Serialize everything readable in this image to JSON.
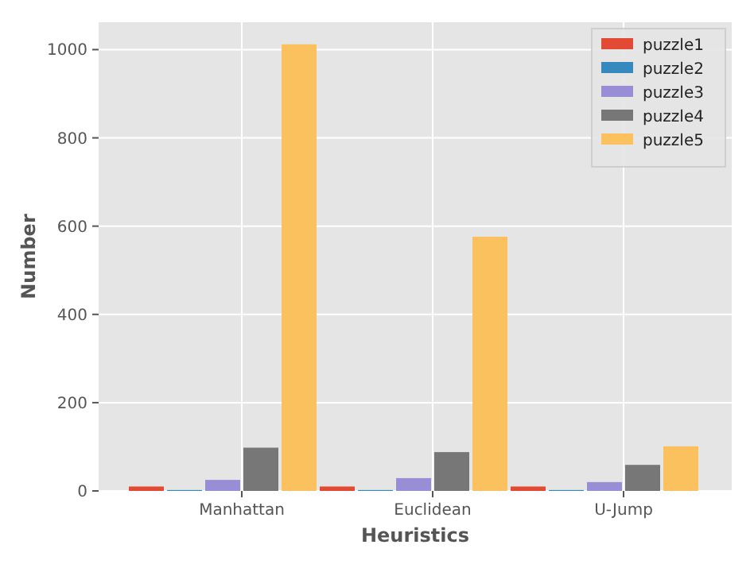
{
  "chart_data": {
    "type": "bar",
    "xlabel": "Heuristics",
    "ylabel": "Number",
    "categories": [
      "Manhattan",
      "Euclidean",
      "U-Jump"
    ],
    "series": [
      {
        "name": "puzzle1",
        "color": "#e24a33",
        "values": [
          10,
          10,
          10
        ]
      },
      {
        "name": "puzzle2",
        "color": "#348abd",
        "values": [
          2,
          2,
          2
        ]
      },
      {
        "name": "puzzle3",
        "color": "#988ed5",
        "values": [
          25,
          29,
          20
        ]
      },
      {
        "name": "puzzle4",
        "color": "#777777",
        "values": [
          98,
          88,
          59
        ]
      },
      {
        "name": "puzzle5",
        "color": "#fbc15e",
        "values": [
          1012,
          576,
          101
        ]
      }
    ],
    "ylim": [
      0,
      1062
    ],
    "yticks": [
      0,
      200,
      400,
      600,
      800,
      1000
    ],
    "grid": true,
    "legend": "top right"
  }
}
